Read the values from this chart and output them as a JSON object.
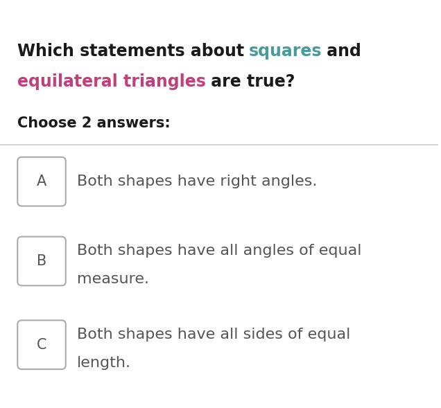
{
  "bg_color": "#ffffff",
  "title_line1_parts": [
    {
      "text": "Which statements about ",
      "color": "#1a1a1a",
      "bold": true
    },
    {
      "text": "squares",
      "color": "#4a9a9a",
      "bold": true
    },
    {
      "text": " and",
      "color": "#1a1a1a",
      "bold": true
    }
  ],
  "title_line2_parts": [
    {
      "text": "equilateral triangles",
      "color": "#c0407a",
      "bold": true
    },
    {
      "text": " are true?",
      "color": "#1a1a1a",
      "bold": true
    }
  ],
  "subtitle": "Choose 2 answers:",
  "subtitle_color": "#1a1a1a",
  "divider_color": "#cccccc",
  "options": [
    {
      "label": "A",
      "text": "Both shapes have right angles.",
      "text_line2": null
    },
    {
      "label": "B",
      "text": "Both shapes have all angles of equal",
      "text_line2": "measure."
    },
    {
      "label": "C",
      "text": "Both shapes have all sides of equal",
      "text_line2": "length."
    }
  ],
  "option_text_color": "#555555",
  "label_box_color": "#aaaaaa",
  "label_text_color": "#555555",
  "title_fontsize": 17,
  "subtitle_fontsize": 15,
  "option_fontsize": 16
}
